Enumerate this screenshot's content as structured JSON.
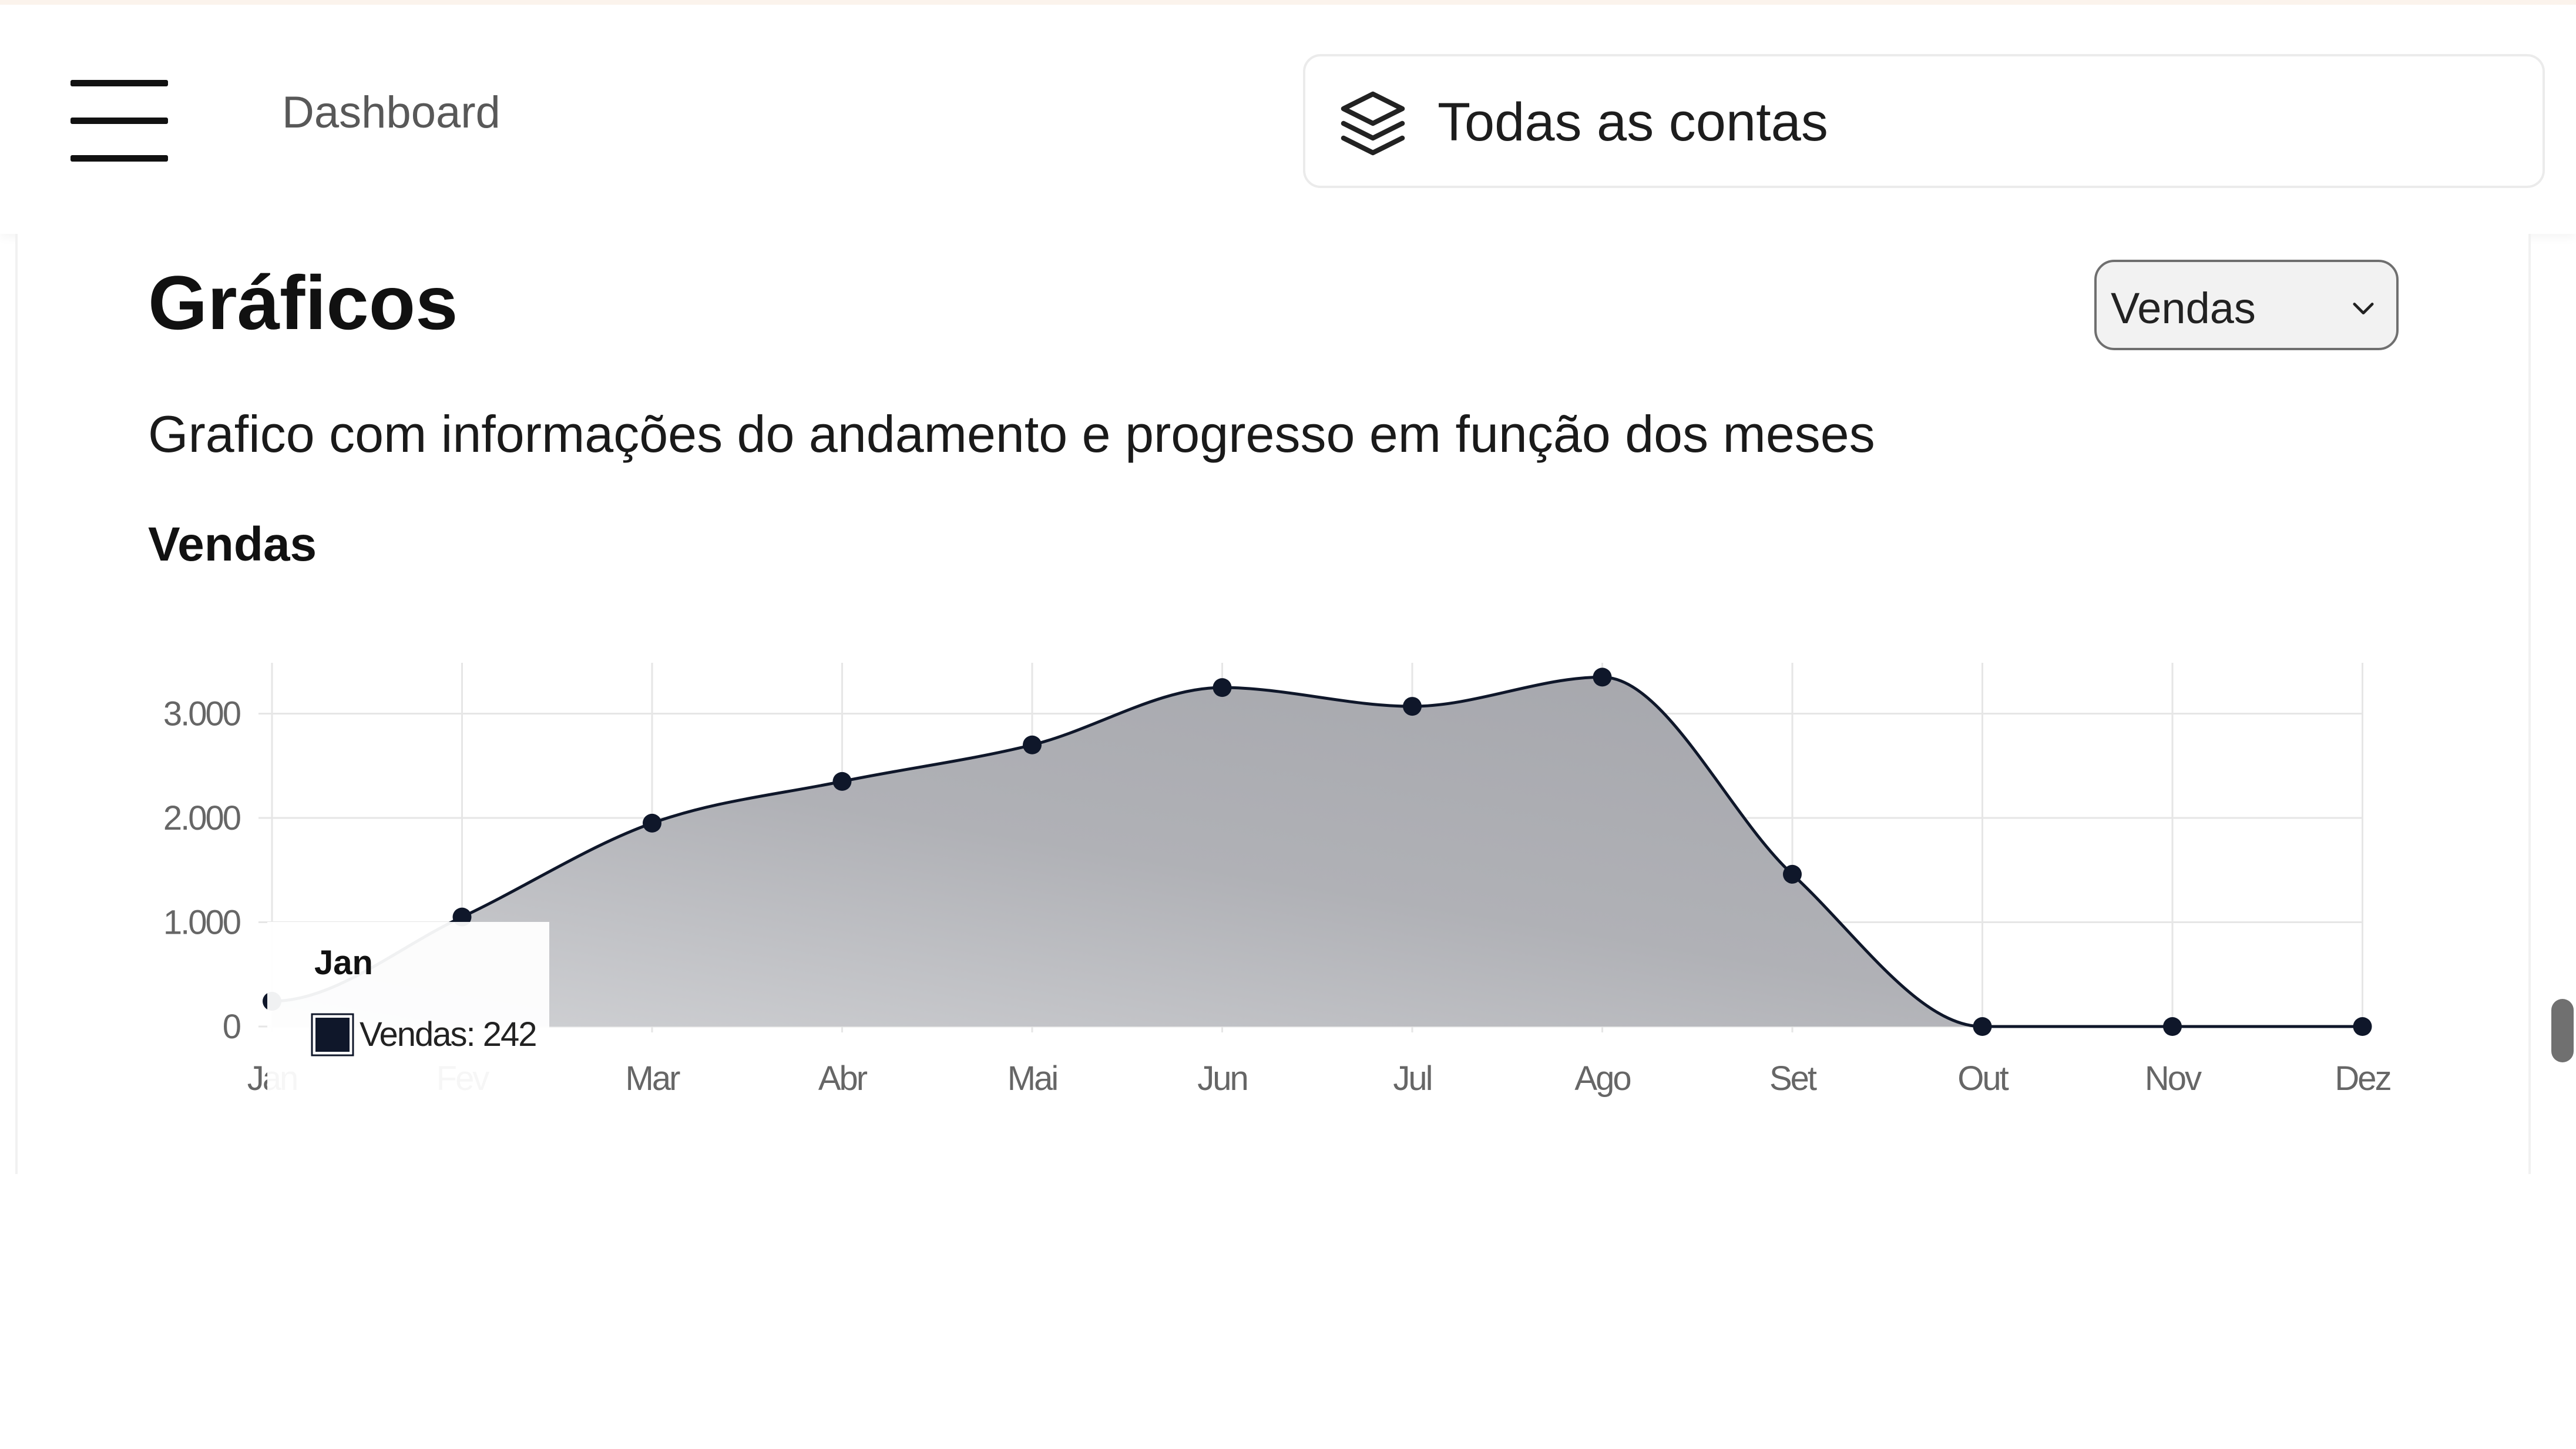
{
  "header": {
    "breadcrumb": "Dashboard",
    "account_selector": {
      "label": "Todas as contas",
      "icon": "layers-icon"
    }
  },
  "section": {
    "title": "Gráficos",
    "description": "Grafico com informações do andamento e progresso em função dos meses",
    "chart_heading": "Vendas",
    "select": {
      "selected": "Vendas"
    }
  },
  "tooltip": {
    "title": "Jan",
    "series": "Vendas",
    "value": "242",
    "text": "Vendas: 242"
  },
  "colors": {
    "area_fill": "#a3a4aa",
    "line": "#0f172a",
    "point": "#0f172a",
    "grid": "#e6e6e6"
  },
  "chart_data": {
    "type": "area",
    "categories": [
      "Jan",
      "Fev",
      "Mar",
      "Abr",
      "Mai",
      "Jun",
      "Jul",
      "Ago",
      "Set",
      "Out",
      "Nov",
      "Dez"
    ],
    "series": [
      {
        "name": "Vendas",
        "values": [
          242,
          1050,
          1950,
          2350,
          2700,
          3250,
          3070,
          3350,
          1460,
          0,
          0,
          0
        ]
      }
    ],
    "y_ticks": [
      "0",
      "1.000",
      "2.000",
      "3.000"
    ],
    "y_tick_values": [
      0,
      1000,
      2000,
      3000
    ],
    "ylim": [
      0,
      3500
    ],
    "grid": true,
    "legend": "none"
  }
}
